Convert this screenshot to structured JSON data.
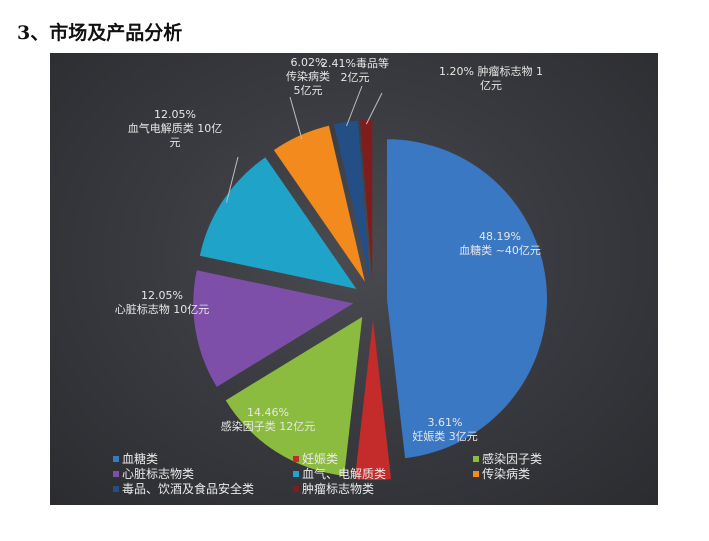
{
  "heading": "3、市场及产品分析",
  "chart_data": {
    "type": "pie",
    "exploded": true,
    "legend_position": "bottom",
    "slices": [
      {
        "name": "血糖类",
        "percent": 48.19,
        "label": [
          "48.19%",
          "血糖类 ~40亿元"
        ],
        "color": "#3a78c3"
      },
      {
        "name": "妊娠类",
        "percent": 3.61,
        "label": [
          "3.61%",
          "妊娠类 3亿元"
        ],
        "color": "#c42b2b"
      },
      {
        "name": "感染因子类",
        "percent": 14.46,
        "label": [
          "14.46%",
          "感染因子类 12亿元"
        ],
        "color": "#8cbc3f"
      },
      {
        "name": "心脏标志物类",
        "percent": 12.05,
        "label": [
          "12.05%",
          "心脏标志物 10亿元"
        ],
        "color": "#7d4fa8"
      },
      {
        "name": "血气、电解质类",
        "percent": 12.05,
        "label": [
          "12.05%",
          "血气电解质类 10亿",
          "元"
        ],
        "color": "#1fa3c8"
      },
      {
        "name": "传染病类",
        "percent": 6.02,
        "label": [
          "6.02%",
          "传染病类",
          "5亿元"
        ],
        "color": "#f28a1e"
      },
      {
        "name": "毒品、饮酒及食品安全类",
        "percent": 2.41,
        "label": [
          "2.41%毒品等",
          "2亿元"
        ],
        "color": "#234f86"
      },
      {
        "name": "肿瘤标志物类",
        "percent": 1.2,
        "label": [
          "1.20% 肿瘤标志物 1",
          "亿元"
        ],
        "color": "#7f1c1c"
      }
    ]
  }
}
